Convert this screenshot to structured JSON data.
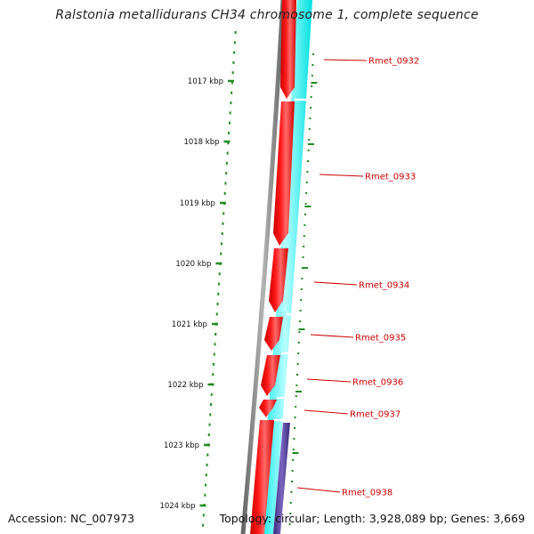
{
  "title": "Ralstonia metallidurans CH34 chromosome 1, complete sequence",
  "accession_text": "Accession: NC_007973",
  "topology_text": "Topology: circular; Length: 3,928,089 bp; Genes: 3,669",
  "ticks": [
    {
      "label": "1017 kbp",
      "kbp": 1017
    },
    {
      "label": "1018 kbp",
      "kbp": 1018
    },
    {
      "label": "1019 kbp",
      "kbp": 1019
    },
    {
      "label": "1020 kbp",
      "kbp": 1020
    },
    {
      "label": "1021 kbp",
      "kbp": 1021
    },
    {
      "label": "1022 kbp",
      "kbp": 1022
    },
    {
      "label": "1023 kbp",
      "kbp": 1023
    },
    {
      "label": "1024 kbp",
      "kbp": 1024
    }
  ],
  "genes": [
    {
      "name": "Rmet_0932"
    },
    {
      "name": "Rmet_0933"
    },
    {
      "name": "Rmet_0934"
    },
    {
      "name": "Rmet_0935"
    },
    {
      "name": "Rmet_0936"
    },
    {
      "name": "Rmet_0937"
    },
    {
      "name": "Rmet_0938"
    }
  ],
  "colors": {
    "cds": "#ff0000",
    "cds_dark": "#c80000",
    "cds_light": "#ff7070",
    "rna_track": "#00ffff",
    "rna_track_light": "#b8ffff",
    "special_track": "#503c96",
    "backbone": "#8a8a8a",
    "ticks": "#228b22",
    "labels": "#cc0000"
  }
}
